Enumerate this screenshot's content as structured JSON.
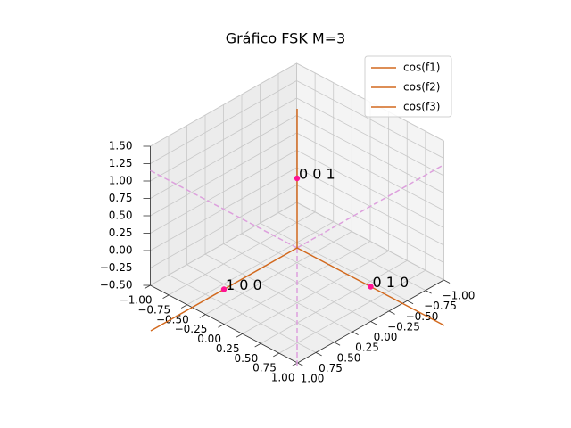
{
  "chart_data": {
    "type": "line3d",
    "title": "Gráfico FSK M=3",
    "xlim": [
      -1,
      1
    ],
    "ylim": [
      -1,
      1
    ],
    "zlim": [
      -0.5,
      1.5
    ],
    "xticks": [
      {
        "value": -1,
        "label": "−1.00"
      },
      {
        "value": -0.75,
        "label": "−0.75"
      },
      {
        "value": -0.5,
        "label": "−0.50"
      },
      {
        "value": -0.25,
        "label": "−0.25"
      },
      {
        "value": 0,
        "label": "0.00"
      },
      0.25,
      {
        "value": 0.5,
        "label": "0.50"
      },
      0.75,
      {
        "value": 1,
        "label": "1.00"
      }
    ],
    "yticks": [
      {
        "value": -1,
        "label": "−1.00"
      },
      {
        "value": -0.75,
        "label": "−0.75"
      },
      {
        "value": -0.5,
        "label": "−0.50"
      },
      {
        "value": -0.25,
        "label": "−0.25"
      },
      {
        "value": 0,
        "label": "0.00"
      },
      0.25,
      {
        "value": 0.5,
        "label": "0.50"
      },
      0.75,
      {
        "value": 1,
        "label": "1.00"
      }
    ],
    "zticks": [
      {
        "value": -0.5,
        "label": "−0.50"
      },
      {
        "value": -0.25,
        "label": "−0.25"
      },
      {
        "value": 0,
        "label": "0.00"
      },
      0.25,
      {
        "value": 0.5,
        "label": "0.50"
      },
      0.75,
      {
        "value": 1,
        "label": "1.00"
      },
      1.25,
      {
        "value": 1.5,
        "label": "1.50"
      }
    ],
    "grid": true,
    "legend": "upper right",
    "series": [
      {
        "name": "cos(f1)",
        "color": "#d2691e",
        "x": [
          0,
          2
        ],
        "y": [
          0,
          0
        ],
        "z": [
          0,
          0
        ]
      },
      {
        "name": "cos(f2)",
        "color": "#d2691e",
        "x": [
          0,
          0
        ],
        "y": [
          0,
          2
        ],
        "z": [
          0,
          0
        ]
      },
      {
        "name": "cos(f3)",
        "color": "#d2691e",
        "x": [
          0,
          0
        ],
        "y": [
          0,
          0
        ],
        "z": [
          0,
          2
        ]
      }
    ],
    "guides": [
      {
        "color": "#dda0dd",
        "style": "dashed",
        "x": [
          0,
          -2
        ],
        "y": [
          0,
          0
        ],
        "z": [
          0,
          0
        ]
      },
      {
        "color": "#dda0dd",
        "style": "dashed",
        "x": [
          0,
          0
        ],
        "y": [
          0,
          -2
        ],
        "z": [
          0,
          0
        ]
      },
      {
        "color": "#dda0dd",
        "style": "dashed",
        "x": [
          0,
          0
        ],
        "y": [
          0,
          0
        ],
        "z": [
          0,
          -1.7
        ]
      }
    ],
    "points": {
      "color": "#ff1493",
      "label_color": "#008080",
      "x": [
        1,
        0,
        0
      ],
      "y": [
        0,
        1,
        0
      ],
      "z": [
        0,
        0,
        1
      ],
      "labels": [
        "1 0 0",
        "0 1 0",
        "0 0 1"
      ]
    }
  }
}
